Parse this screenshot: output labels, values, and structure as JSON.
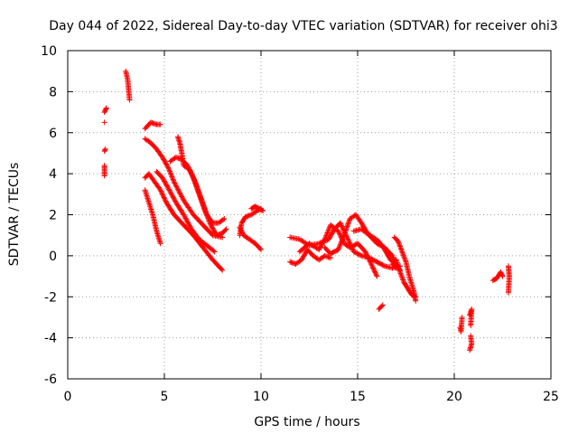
{
  "chart_data": {
    "type": "scatter",
    "title": "Day 044 of 2022, Sidereal Day-to-day VTEC variation (SDTVAR) for receiver ohi3",
    "xlabel": "GPS time / hours",
    "ylabel": "SDTVAR / TECUs",
    "xlim": [
      0,
      25
    ],
    "ylim": [
      -6,
      10
    ],
    "xticks": [
      0,
      5,
      10,
      15,
      20,
      25
    ],
    "yticks": [
      -6,
      -4,
      -2,
      0,
      2,
      4,
      6,
      8,
      10
    ],
    "grid": true,
    "marker": "plus",
    "color": "#ff0000",
    "series": [
      {
        "name": "SDTVAR",
        "segments": [
          [
            [
              1.9,
              3.9
            ],
            [
              1.9,
              4.4
            ]
          ],
          [
            [
              1.9,
              5.1
            ],
            [
              1.95,
              5.2
            ]
          ],
          [
            [
              1.9,
              6.5
            ]
          ],
          [
            [
              1.9,
              7.0
            ],
            [
              2.0,
              7.2
            ]
          ],
          [
            [
              3.0,
              9.0
            ],
            [
              3.1,
              8.6
            ],
            [
              3.2,
              7.6
            ]
          ],
          [
            [
              4.0,
              5.7
            ],
            [
              4.3,
              5.5
            ],
            [
              4.6,
              5.2
            ],
            [
              4.9,
              4.8
            ],
            [
              5.2,
              4.3
            ],
            [
              5.5,
              3.6
            ],
            [
              6.0,
              2.7
            ],
            [
              6.5,
              2.0
            ],
            [
              7.0,
              1.5
            ],
            [
              7.5,
              1.0
            ],
            [
              8.0,
              0.9
            ]
          ],
          [
            [
              4.0,
              6.2
            ],
            [
              4.3,
              6.5
            ],
            [
              4.6,
              6.4
            ],
            [
              4.8,
              6.4
            ]
          ],
          [
            [
              4.0,
              3.8
            ],
            [
              4.2,
              4.0
            ],
            [
              4.5,
              3.6
            ],
            [
              4.8,
              3.2
            ],
            [
              5.1,
              2.6
            ],
            [
              5.5,
              2.0
            ],
            [
              6.0,
              1.5
            ],
            [
              6.5,
              1.0
            ],
            [
              7.0,
              0.4
            ],
            [
              7.5,
              -0.2
            ],
            [
              8.0,
              -0.7
            ]
          ],
          [
            [
              4.0,
              3.2
            ],
            [
              4.2,
              2.6
            ],
            [
              4.4,
              2.0
            ],
            [
              4.6,
              1.2
            ],
            [
              4.8,
              0.6
            ]
          ],
          [
            [
              4.6,
              4.1
            ],
            [
              4.9,
              3.8
            ],
            [
              5.2,
              3.3
            ],
            [
              5.6,
              2.6
            ],
            [
              6.0,
              2.0
            ],
            [
              6.4,
              1.3
            ],
            [
              6.8,
              0.8
            ],
            [
              7.2,
              0.5
            ],
            [
              7.6,
              0.2
            ]
          ],
          [
            [
              5.3,
              4.6
            ],
            [
              5.6,
              4.8
            ],
            [
              5.9,
              4.7
            ],
            [
              6.2,
              4.4
            ],
            [
              6.5,
              3.8
            ],
            [
              6.8,
              3.0
            ],
            [
              7.1,
              2.2
            ],
            [
              7.4,
              1.5
            ],
            [
              7.7,
              1.0
            ],
            [
              8.0,
              1.1
            ],
            [
              8.2,
              1.3
            ]
          ],
          [
            [
              5.7,
              5.8
            ],
            [
              5.8,
              5.5
            ],
            [
              5.9,
              5.0
            ],
            [
              6.0,
              4.4
            ],
            [
              6.3,
              4.2
            ],
            [
              6.6,
              3.6
            ],
            [
              6.9,
              2.8
            ],
            [
              7.2,
              2.0
            ],
            [
              7.5,
              1.6
            ],
            [
              7.8,
              1.6
            ],
            [
              8.1,
              1.8
            ]
          ],
          [
            [
              8.9,
              1.0
            ],
            [
              9.0,
              1.6
            ],
            [
              9.2,
              1.9
            ],
            [
              9.5,
              2.0
            ],
            [
              9.8,
              2.2
            ],
            [
              10.0,
              2.3
            ]
          ],
          [
            [
              8.9,
              1.4
            ],
            [
              9.1,
              1.0
            ],
            [
              9.4,
              0.8
            ],
            [
              9.7,
              0.6
            ],
            [
              9.9,
              0.4
            ],
            [
              10.0,
              0.3
            ]
          ],
          [
            [
              9.5,
              2.3
            ],
            [
              9.7,
              2.4
            ],
            [
              9.9,
              2.3
            ],
            [
              10.1,
              2.2
            ]
          ],
          [
            [
              11.5,
              0.9
            ],
            [
              12.0,
              0.8
            ],
            [
              12.5,
              0.5
            ],
            [
              13.0,
              0.6
            ],
            [
              13.5,
              0.8
            ],
            [
              13.8,
              1.3
            ],
            [
              14.1,
              1.6
            ],
            [
              14.4,
              1.0
            ],
            [
              14.8,
              0.2
            ],
            [
              15.2,
              0.0
            ],
            [
              15.6,
              -0.1
            ],
            [
              16.0,
              -0.3
            ],
            [
              16.4,
              -0.5
            ],
            [
              16.8,
              -0.6
            ],
            [
              17.2,
              -0.5
            ]
          ],
          [
            [
              11.5,
              -0.3
            ],
            [
              11.8,
              -0.4
            ],
            [
              12.1,
              -0.2
            ],
            [
              12.4,
              0.3
            ],
            [
              12.7,
              0.0
            ],
            [
              13.0,
              -0.2
            ],
            [
              13.3,
              0.0
            ],
            [
              13.6,
              -0.1
            ]
          ],
          [
            [
              12.0,
              0.2
            ],
            [
              12.5,
              0.6
            ],
            [
              13.0,
              0.3
            ],
            [
              13.3,
              0.8
            ],
            [
              13.6,
              1.5
            ],
            [
              14.0,
              1.2
            ],
            [
              14.3,
              0.6
            ],
            [
              14.6,
              0.4
            ],
            [
              15.0,
              0.6
            ],
            [
              15.4,
              0.2
            ],
            [
              15.8,
              -0.6
            ],
            [
              16.0,
              -1.0
            ]
          ],
          [
            [
              13.3,
              0.4
            ],
            [
              13.6,
              0.1
            ],
            [
              14.0,
              0.3
            ],
            [
              14.3,
              1.0
            ],
            [
              14.6,
              1.8
            ],
            [
              14.9,
              2.0
            ],
            [
              15.2,
              1.6
            ],
            [
              15.5,
              1.1
            ],
            [
              15.8,
              0.9
            ],
            [
              16.1,
              0.7
            ],
            [
              16.4,
              0.3
            ],
            [
              16.7,
              -0.2
            ],
            [
              17.0,
              -0.4
            ]
          ],
          [
            [
              14.8,
              1.2
            ],
            [
              15.2,
              1.3
            ],
            [
              15.6,
              1.0
            ],
            [
              16.0,
              0.6
            ],
            [
              16.4,
              0.4
            ],
            [
              16.8,
              0.0
            ],
            [
              17.0,
              -0.6
            ]
          ],
          [
            [
              16.1,
              -2.6
            ],
            [
              16.3,
              -2.4
            ]
          ],
          [
            [
              16.8,
              -0.4
            ],
            [
              17.0,
              -0.5
            ],
            [
              17.2,
              -0.7
            ]
          ],
          [
            [
              16.9,
              0.9
            ],
            [
              17.1,
              0.7
            ],
            [
              17.3,
              0.2
            ],
            [
              17.5,
              -0.3
            ],
            [
              17.7,
              -1.1
            ],
            [
              17.9,
              -1.7
            ],
            [
              18.0,
              -2.2
            ]
          ],
          [
            [
              16.8,
              -0.3
            ],
            [
              17.0,
              -0.2
            ],
            [
              17.2,
              -0.8
            ],
            [
              17.4,
              -1.3
            ],
            [
              17.6,
              -1.6
            ],
            [
              17.8,
              -1.9
            ],
            [
              18.0,
              -2.0
            ]
          ],
          [
            [
              20.3,
              -3.5
            ],
            [
              20.35,
              -3.7
            ],
            [
              20.4,
              -3.0
            ]
          ],
          [
            [
              20.8,
              -2.9
            ],
            [
              20.9,
              -2.6
            ],
            [
              20.85,
              -3.4
            ]
          ],
          [
            [
              20.8,
              -4.6
            ],
            [
              20.9,
              -4.3
            ],
            [
              20.85,
              -3.9
            ]
          ],
          [
            [
              22.0,
              -1.2
            ],
            [
              22.2,
              -1.1
            ],
            [
              22.4,
              -0.8
            ],
            [
              22.5,
              -1.0
            ]
          ],
          [
            [
              22.8,
              -0.5
            ],
            [
              22.85,
              -1.0
            ],
            [
              22.8,
              -1.8
            ]
          ]
        ]
      }
    ]
  }
}
